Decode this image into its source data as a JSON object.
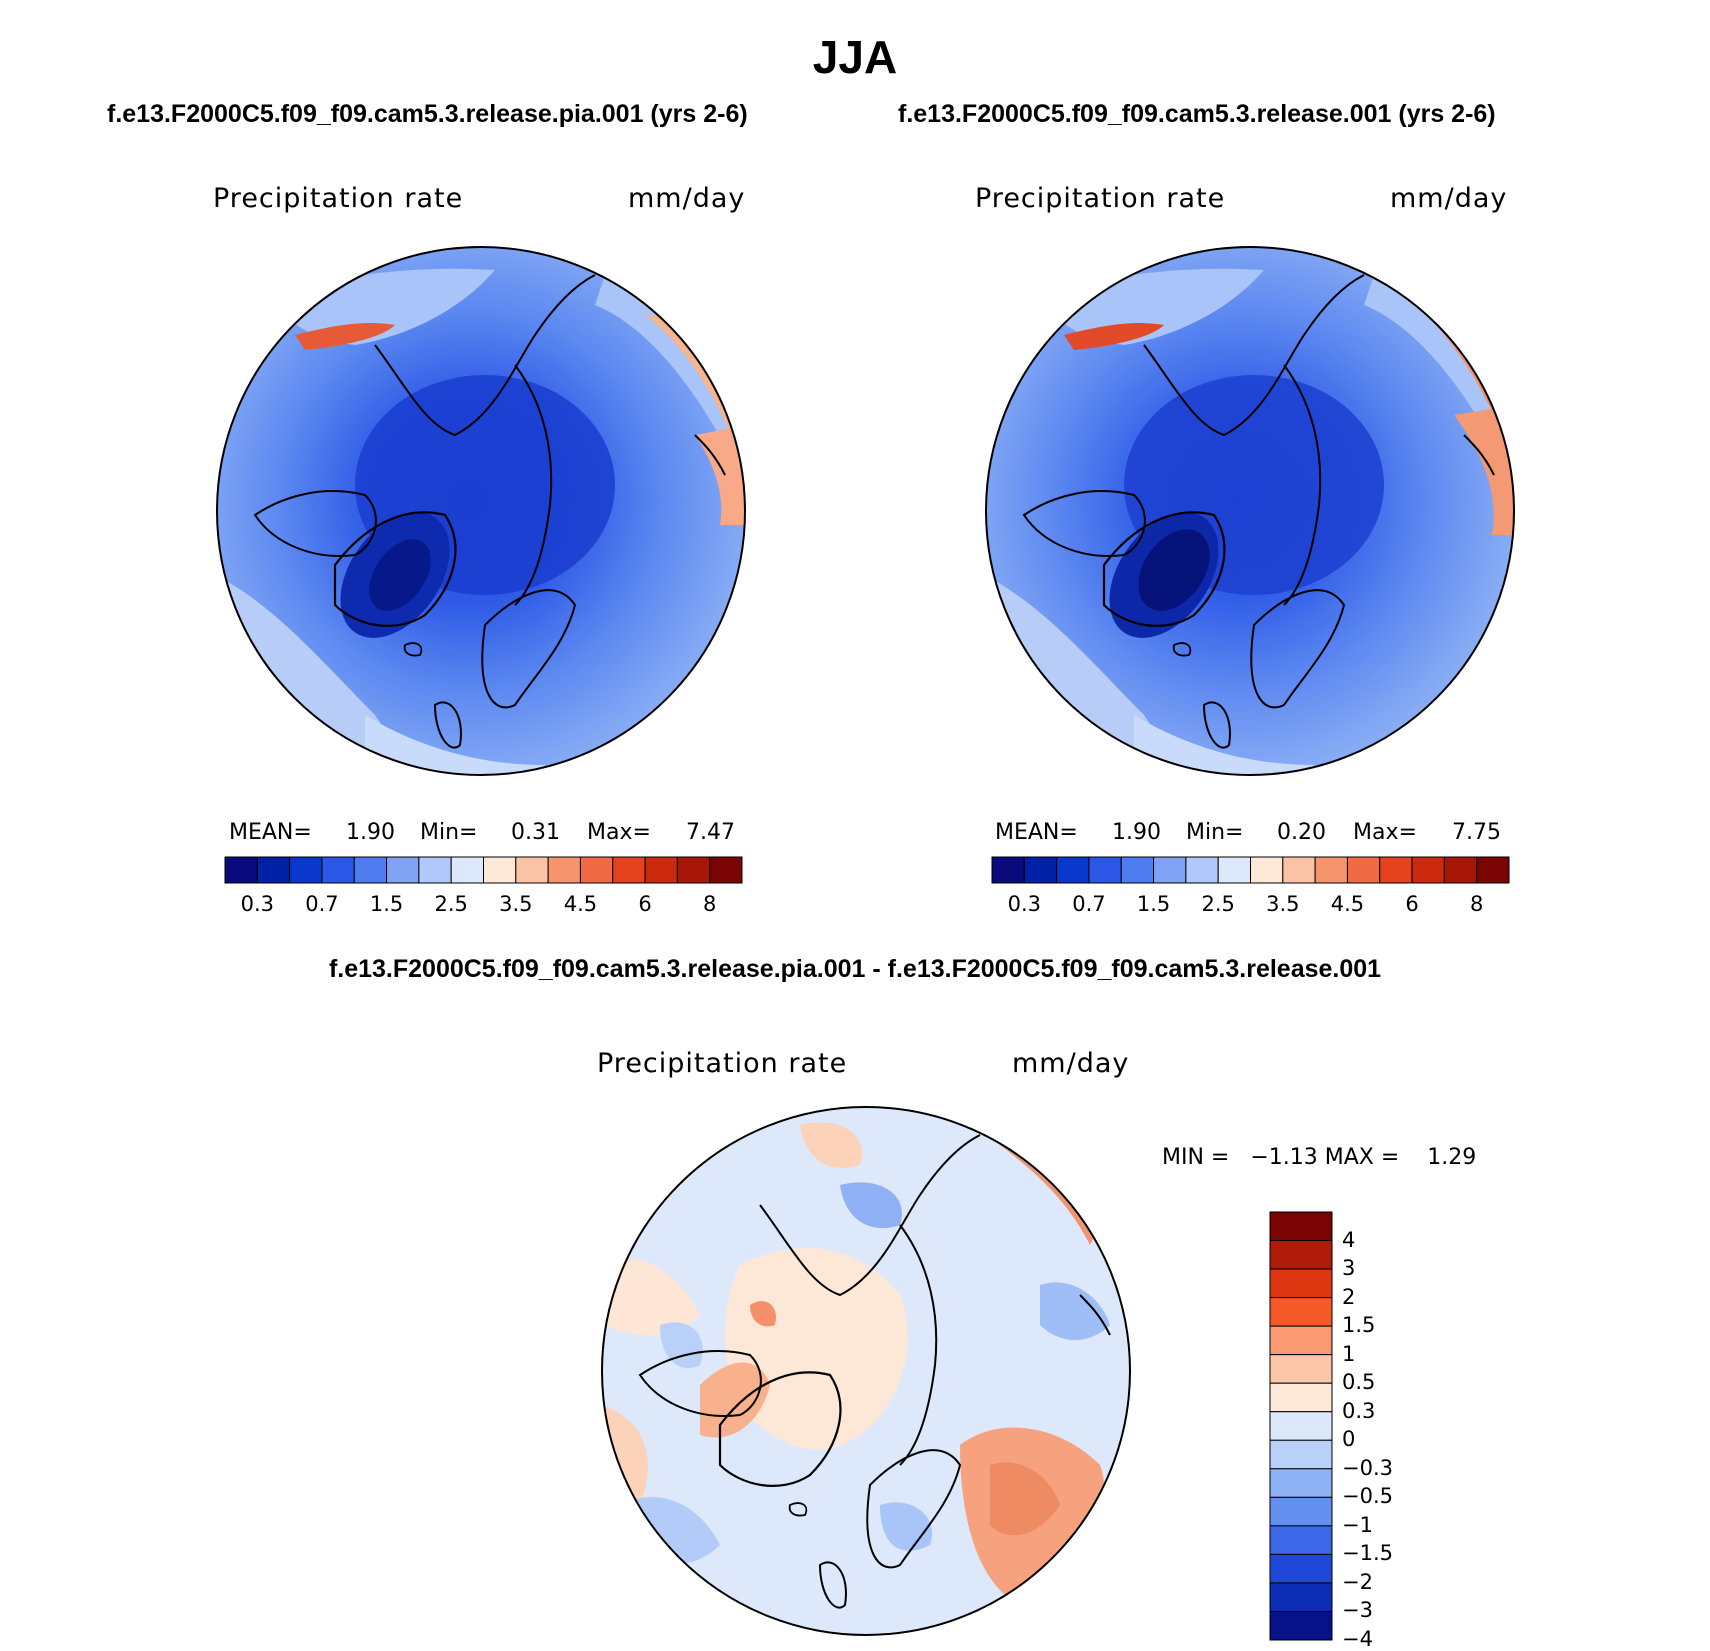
{
  "figure": {
    "title": "JJA",
    "panels": [
      {
        "case_title": "f.e13.F2000C5.f09_f09.cam5.3.release.pia.001 (yrs 2-6)",
        "variable": "Precipitation rate",
        "units": "mm/day",
        "stats": {
          "mean_label": "MEAN=",
          "mean_value": "1.90",
          "min_label": "Min=",
          "min_value": "0.31",
          "max_label": "Max=",
          "max_value": "7.47"
        }
      },
      {
        "case_title": "f.e13.F2000C5.f09_f09.cam5.3.release.001 (yrs 2-6)",
        "variable": "Precipitation rate",
        "units": "mm/day",
        "stats": {
          "mean_label": "MEAN=",
          "mean_value": "1.90",
          "min_label": "Min=",
          "min_value": "0.20",
          "max_label": "Max=",
          "max_value": "7.75"
        }
      }
    ],
    "difference": {
      "title": "f.e13.F2000C5.f09_f09.cam5.3.release.pia.001 - f.e13.F2000C5.f09_f09.cam5.3.release.001",
      "variable": "Precipitation rate",
      "units": "mm/day",
      "stats_line": "MIN =   −1.13 MAX =    1.29"
    },
    "colorbar_abs": {
      "colors": [
        "#0a0a7d",
        "#0021a6",
        "#0a37cc",
        "#2b56e6",
        "#4f7cf0",
        "#7fa2f5",
        "#b0c8fa",
        "#dde9fb",
        "#fde8d8",
        "#fbc3a5",
        "#f6946d",
        "#f06b43",
        "#e5421f",
        "#cc2a0e",
        "#a81607",
        "#7a0303"
      ],
      "labels": [
        "0.3",
        "0.7",
        "1.5",
        "2.5",
        "3.5",
        "4.5",
        "6",
        "8"
      ]
    },
    "colorbar_diff": {
      "colors": [
        "#7a0303",
        "#b01a08",
        "#dc3710",
        "#f45a25",
        "#f99a73",
        "#fcc6a8",
        "#fde8d8",
        "#dde9fb",
        "#b9d0f8",
        "#8fb2f4",
        "#6590ef",
        "#3c68e8",
        "#1f48d8",
        "#0c2db4",
        "#06128a"
      ],
      "labels": [
        "4",
        "3",
        "2",
        "1.5",
        "1",
        "0.5",
        "0.3",
        "0",
        "−0.3",
        "−0.5",
        "−1",
        "−1.5",
        "−2",
        "−3",
        "−4"
      ]
    }
  }
}
